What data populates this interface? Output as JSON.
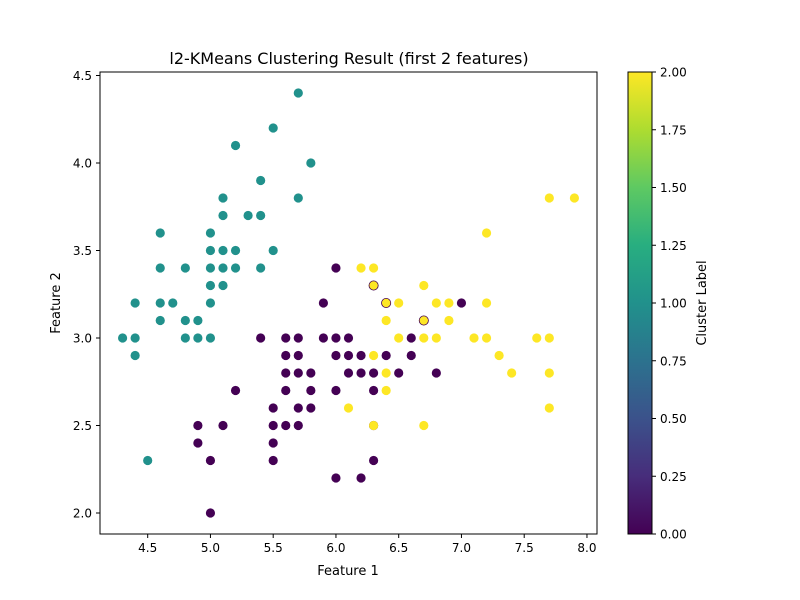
{
  "chart_data": {
    "type": "scatter",
    "title": "l2-KMeans Clustering Result (first 2 features)",
    "xlabel": "Feature 1",
    "ylabel": "Feature 2",
    "xlim": [
      4.12,
      8.08
    ],
    "ylim": [
      1.88,
      4.52
    ],
    "xticks": [
      4.5,
      5.0,
      5.5,
      6.0,
      6.5,
      7.0,
      7.5,
      8.0
    ],
    "xtick_labels": [
      "4.5",
      "5.0",
      "5.5",
      "6.0",
      "6.5",
      "7.0",
      "7.5",
      "8.0"
    ],
    "yticks": [
      2.0,
      2.5,
      3.0,
      3.5,
      4.0,
      4.5
    ],
    "ytick_labels": [
      "2.0",
      "2.5",
      "3.0",
      "3.5",
      "4.0",
      "4.5"
    ],
    "grid": false,
    "colorbar": {
      "label": "Cluster Label",
      "min": 0.0,
      "max": 2.0,
      "colormap": "viridis",
      "ticks": [
        0.0,
        0.25,
        0.5,
        0.75,
        1.0,
        1.25,
        1.5,
        1.75,
        2.0
      ],
      "tick_labels": [
        "0.00",
        "0.25",
        "0.50",
        "0.75",
        "1.00",
        "1.25",
        "1.50",
        "1.75",
        "2.00"
      ]
    },
    "cluster_colors": [
      "#440154",
      "#21918c",
      "#fde725"
    ],
    "series": [
      {
        "cluster": 0,
        "points": [
          [
            4.9,
            2.5
          ],
          [
            4.9,
            2.4
          ],
          [
            5.0,
            2.3
          ],
          [
            5.0,
            2.0
          ],
          [
            5.1,
            2.5
          ],
          [
            5.2,
            2.7
          ],
          [
            5.4,
            3.0
          ],
          [
            5.5,
            2.6
          ],
          [
            5.5,
            2.5
          ],
          [
            5.5,
            2.4
          ],
          [
            5.5,
            2.3
          ],
          [
            5.6,
            3.0
          ],
          [
            5.6,
            2.9
          ],
          [
            5.6,
            2.8
          ],
          [
            5.6,
            2.7
          ],
          [
            5.6,
            2.5
          ],
          [
            5.7,
            3.0
          ],
          [
            5.7,
            2.9
          ],
          [
            5.7,
            2.8
          ],
          [
            5.7,
            2.6
          ],
          [
            5.7,
            2.5
          ],
          [
            5.8,
            2.8
          ],
          [
            5.8,
            2.7
          ],
          [
            5.8,
            2.6
          ],
          [
            5.9,
            3.2
          ],
          [
            5.9,
            3.0
          ],
          [
            6.0,
            3.4
          ],
          [
            6.0,
            3.0
          ],
          [
            6.0,
            2.9
          ],
          [
            6.0,
            2.7
          ],
          [
            6.0,
            2.2
          ],
          [
            6.1,
            3.0
          ],
          [
            6.1,
            2.9
          ],
          [
            6.1,
            2.8
          ],
          [
            6.2,
            2.9
          ],
          [
            6.2,
            2.8
          ],
          [
            6.2,
            2.2
          ],
          [
            6.3,
            2.8
          ],
          [
            6.3,
            2.7
          ],
          [
            6.3,
            2.5
          ],
          [
            6.3,
            2.3
          ],
          [
            6.4,
            2.9
          ],
          [
            6.5,
            2.8
          ],
          [
            6.6,
            3.0
          ],
          [
            6.6,
            2.9
          ],
          [
            6.8,
            2.8
          ],
          [
            7.0,
            3.2
          ]
        ]
      },
      {
        "cluster": 1,
        "points": [
          [
            4.3,
            3.0
          ],
          [
            4.4,
            3.2
          ],
          [
            4.4,
            3.0
          ],
          [
            4.4,
            2.9
          ],
          [
            4.5,
            2.3
          ],
          [
            4.6,
            3.6
          ],
          [
            4.6,
            3.4
          ],
          [
            4.6,
            3.2
          ],
          [
            4.6,
            3.1
          ],
          [
            4.7,
            3.2
          ],
          [
            4.8,
            3.4
          ],
          [
            4.8,
            3.1
          ],
          [
            4.8,
            3.0
          ],
          [
            4.9,
            3.1
          ],
          [
            4.9,
            3.0
          ],
          [
            5.0,
            3.6
          ],
          [
            5.0,
            3.5
          ],
          [
            5.0,
            3.4
          ],
          [
            5.0,
            3.3
          ],
          [
            5.0,
            3.2
          ],
          [
            5.0,
            3.0
          ],
          [
            5.1,
            3.8
          ],
          [
            5.1,
            3.7
          ],
          [
            5.1,
            3.5
          ],
          [
            5.1,
            3.4
          ],
          [
            5.1,
            3.3
          ],
          [
            5.2,
            4.1
          ],
          [
            5.2,
            3.5
          ],
          [
            5.2,
            3.4
          ],
          [
            5.3,
            3.7
          ],
          [
            5.4,
            3.9
          ],
          [
            5.4,
            3.7
          ],
          [
            5.4,
            3.4
          ],
          [
            5.5,
            4.2
          ],
          [
            5.5,
            3.5
          ],
          [
            5.7,
            4.4
          ],
          [
            5.7,
            3.8
          ],
          [
            5.8,
            4.0
          ]
        ]
      },
      {
        "cluster": 2,
        "points": [
          [
            6.1,
            2.6
          ],
          [
            6.2,
            3.4
          ],
          [
            6.3,
            3.4
          ],
          [
            6.3,
            3.3
          ],
          [
            6.3,
            2.9
          ],
          [
            6.3,
            2.5
          ],
          [
            6.4,
            3.2
          ],
          [
            6.4,
            3.1
          ],
          [
            6.4,
            2.8
          ],
          [
            6.4,
            2.7
          ],
          [
            6.5,
            3.2
          ],
          [
            6.5,
            3.0
          ],
          [
            6.7,
            3.3
          ],
          [
            6.7,
            3.1
          ],
          [
            6.7,
            3.0
          ],
          [
            6.7,
            2.5
          ],
          [
            6.8,
            3.2
          ],
          [
            6.8,
            3.0
          ],
          [
            6.9,
            3.2
          ],
          [
            6.9,
            3.1
          ],
          [
            7.1,
            3.0
          ],
          [
            7.2,
            3.6
          ],
          [
            7.2,
            3.2
          ],
          [
            7.2,
            3.0
          ],
          [
            7.3,
            2.9
          ],
          [
            7.4,
            2.8
          ],
          [
            7.6,
            3.0
          ],
          [
            7.7,
            3.8
          ],
          [
            7.7,
            3.0
          ],
          [
            7.7,
            2.8
          ],
          [
            7.7,
            2.6
          ],
          [
            7.9,
            3.8
          ]
        ]
      }
    ],
    "overlap_points": [
      [
        6.3,
        3.3,
        0
      ],
      [
        6.4,
        3.2,
        0
      ],
      [
        6.7,
        3.1,
        0
      ]
    ]
  }
}
